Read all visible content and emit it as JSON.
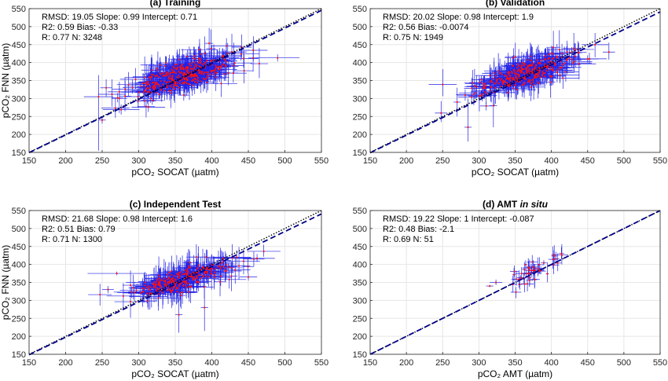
{
  "chart_data": [
    {
      "type": "scatter",
      "title": "(a) Training",
      "title_italic": "",
      "xlabel": "pCO₂ SOCAT (µatm)",
      "ylabel": "pCO₂ FNN (µatm)",
      "xlim": [
        150,
        550
      ],
      "ylim": [
        150,
        550
      ],
      "xticks": [
        150,
        200,
        250,
        300,
        350,
        400,
        450,
        500,
        550
      ],
      "yticks": [
        150,
        200,
        250,
        300,
        350,
        400,
        450,
        500,
        550
      ],
      "grid": true,
      "stats": [
        "RMSD: 19.05  Slope: 0.99  Intercept: 0.71",
        "R2: 0.59  Bias: -0.33",
        "R: 0.77 N: 3248"
      ],
      "fit_line": {
        "slope": 0.99,
        "intercept": 0.71
      },
      "cloud": {
        "center": [
          360,
          365
        ],
        "spread": [
          35,
          30
        ],
        "count": 380,
        "yerr": 25,
        "xerr": 18
      },
      "outliers": [
        {
          "x": 245,
          "y": 305,
          "yerr_low": 150,
          "yerr_high": 60,
          "xerr": 20
        },
        {
          "x": 490,
          "y": 413,
          "yerr_low": 10,
          "yerr_high": 10,
          "xerr": 30
        },
        {
          "x": 250,
          "y": 240,
          "yerr_low": 10,
          "yerr_high": 10,
          "xerr": 5
        }
      ]
    },
    {
      "type": "scatter",
      "title": "(b) Validation",
      "title_italic": "",
      "xlabel": "pCO₂ SOCAT (µatm)",
      "ylabel": "",
      "xlim": [
        150,
        550
      ],
      "ylim": [
        150,
        550
      ],
      "xticks": [
        150,
        200,
        250,
        300,
        350,
        400,
        450,
        500,
        550
      ],
      "yticks": [
        150,
        200,
        250,
        300,
        350,
        400,
        450,
        500,
        550
      ],
      "grid": true,
      "stats": [
        "RMSD: 20.02  Slope: 0.98  Intercept: 1.9",
        "R2: 0.56  Bias: -0.0074",
        "R: 0.75 N: 1949"
      ],
      "fit_line": {
        "slope": 0.98,
        "intercept": 1.9
      },
      "cloud": {
        "center": [
          365,
          370
        ],
        "spread": [
          35,
          28
        ],
        "count": 320,
        "yerr": 25,
        "xerr": 18
      },
      "outliers": [
        {
          "x": 270,
          "y": 290,
          "yerr_low": 40,
          "yerr_high": 40,
          "xerr": 5
        },
        {
          "x": 285,
          "y": 220,
          "yerr_low": 40,
          "yerr_high": 80,
          "xerr": 5
        },
        {
          "x": 320,
          "y": 280,
          "yerr_low": 60,
          "yerr_high": 60,
          "xerr": 5
        },
        {
          "x": 450,
          "y": 410,
          "yerr_low": 10,
          "yerr_high": 10,
          "xerr": 15
        }
      ]
    },
    {
      "type": "scatter",
      "title": "(c) Independent Test",
      "title_italic": "",
      "xlabel": "pCO₂ SOCAT (µatm)",
      "ylabel": "pCO₂ FNN (µatm)",
      "xlim": [
        150,
        550
      ],
      "ylim": [
        150,
        550
      ],
      "xticks": [
        150,
        200,
        250,
        300,
        350,
        400,
        450,
        500,
        550
      ],
      "yticks": [
        150,
        200,
        250,
        300,
        350,
        400,
        450,
        500,
        550
      ],
      "grid": true,
      "stats": [
        "RMSD: 21.68  Slope: 0.98  Intercept: 1.6",
        "R2: 0.51  Bias: 0.79",
        "R: 0.71 N: 1300"
      ],
      "fit_line": {
        "slope": 0.98,
        "intercept": 1.6
      },
      "cloud": {
        "center": [
          360,
          360
        ],
        "spread": [
          35,
          25
        ],
        "count": 280,
        "yerr": 25,
        "xerr": 18
      },
      "outliers": [
        {
          "x": 270,
          "y": 375,
          "yerr_low": 5,
          "yerr_high": 5,
          "xerr": 40
        },
        {
          "x": 355,
          "y": 260,
          "yerr_low": 50,
          "yerr_high": 50,
          "xerr": 5
        },
        {
          "x": 390,
          "y": 280,
          "yerr_low": 65,
          "yerr_high": 60,
          "xerr": 5
        },
        {
          "x": 450,
          "y": 365,
          "yerr_low": 10,
          "yerr_high": 10,
          "xerr": 12
        },
        {
          "x": 258,
          "y": 330,
          "yerr_low": 10,
          "yerr_high": 10,
          "xerr": 8
        }
      ]
    },
    {
      "type": "scatter",
      "title": "(d) AMT ",
      "title_italic": "in situ",
      "xlabel": "pCO₂ AMT (µatm)",
      "ylabel": "",
      "xlim": [
        150,
        550
      ],
      "ylim": [
        150,
        550
      ],
      "xticks": [
        150,
        200,
        250,
        300,
        350,
        400,
        450,
        500,
        550
      ],
      "yticks": [
        150,
        200,
        250,
        300,
        350,
        400,
        450,
        500,
        550
      ],
      "grid": true,
      "stats": [
        "RMSD: 19.22  Slope: 1  Intercept: -0.087",
        "R2: 0.48  Bias: -2.1",
        "R: 0.69 N: 51"
      ],
      "fit_line": {
        "slope": 1.0,
        "intercept": -0.087
      },
      "cloud": {
        "center": [
          380,
          385
        ],
        "spread": [
          20,
          25
        ],
        "count": 51,
        "yerr": 15,
        "xerr": 6
      },
      "outliers": [
        {
          "x": 315,
          "y": 340,
          "yerr_low": 3,
          "yerr_high": 3,
          "xerr": 5
        }
      ]
    }
  ]
}
